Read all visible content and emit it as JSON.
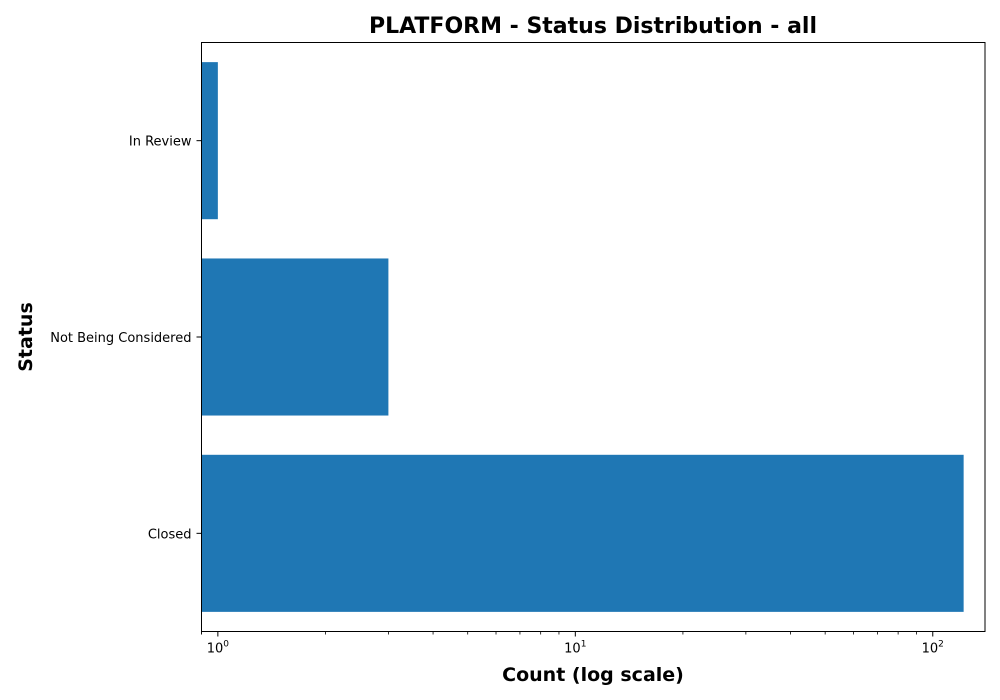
{
  "chart_data": {
    "type": "bar",
    "orientation": "horizontal",
    "title": "PLATFORM - Status Distribution - all",
    "xlabel": "Count (log scale)",
    "ylabel": "Status",
    "x_scale": "log",
    "xlim": [
      0.9,
      140
    ],
    "x_ticks": [
      {
        "value": 1,
        "base": "10",
        "exp": "0"
      },
      {
        "value": 10,
        "base": "10",
        "exp": "1"
      },
      {
        "value": 100,
        "base": "10",
        "exp": "2"
      }
    ],
    "categories": [
      "Closed",
      "Not Being Considered",
      "In Review"
    ],
    "values": [
      122,
      3,
      1
    ],
    "color": "#1f77b4",
    "grid": false,
    "legend": "none"
  }
}
